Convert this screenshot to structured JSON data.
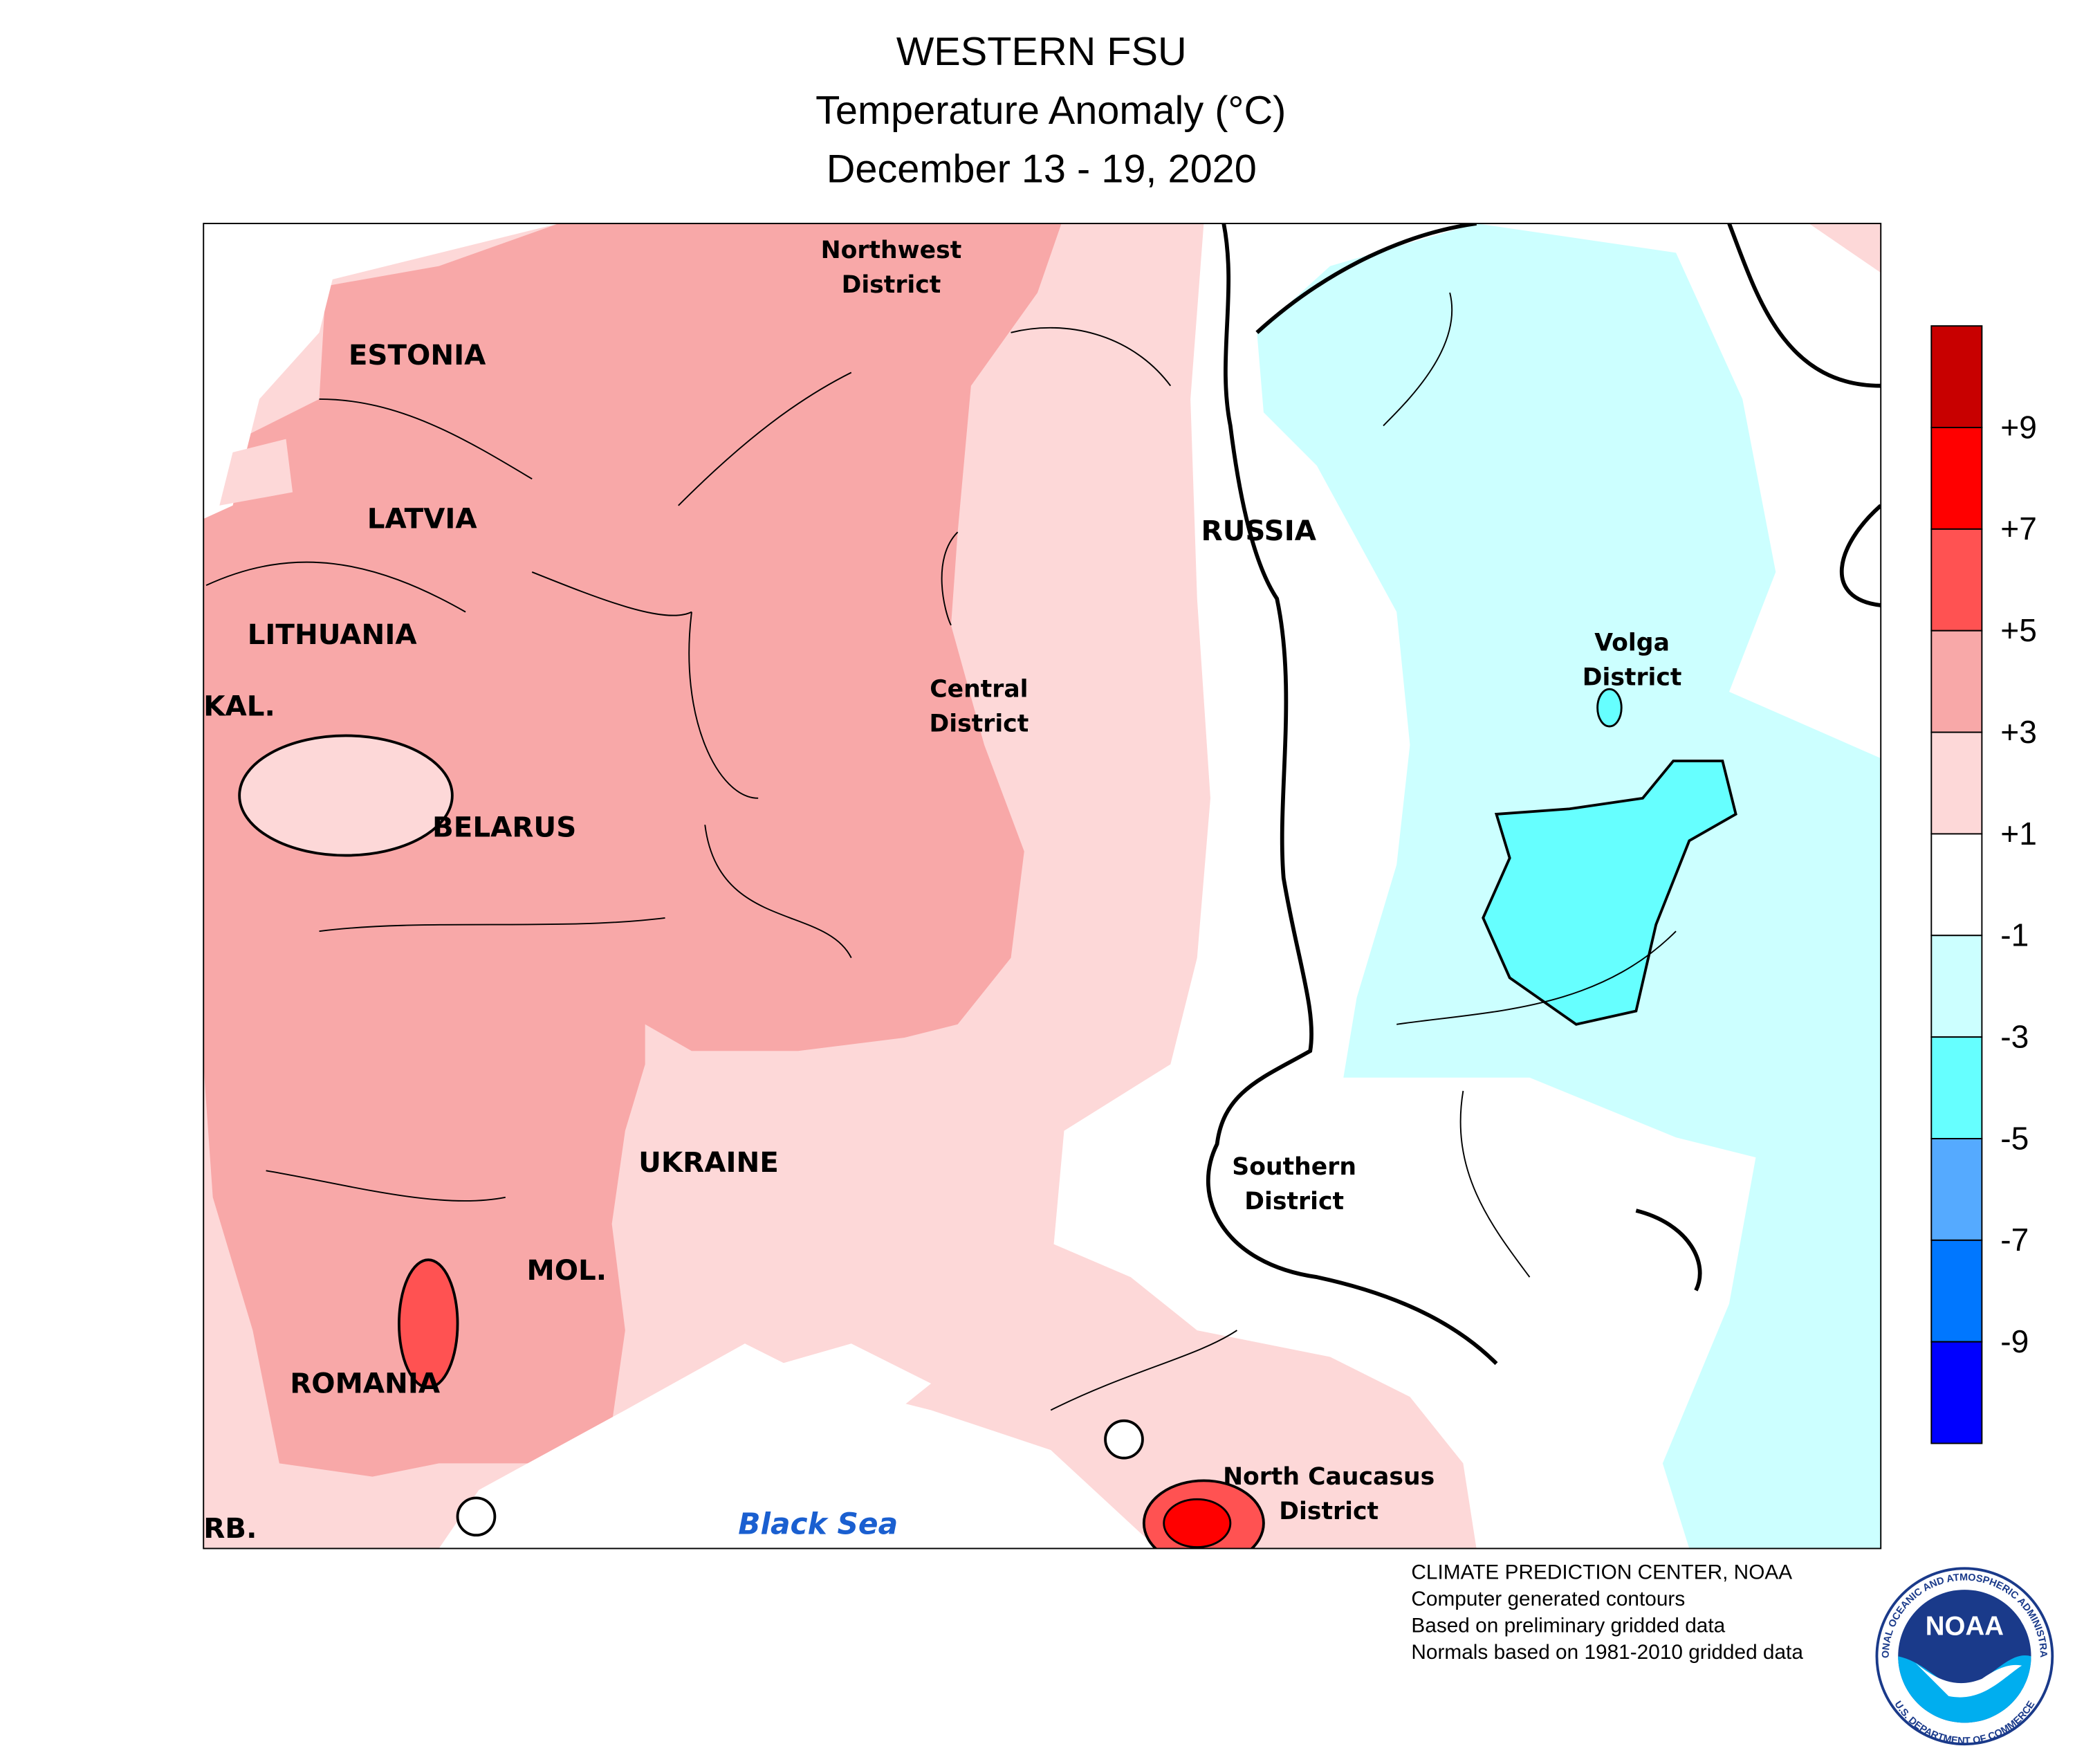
{
  "header": {
    "title": "WESTERN FSU",
    "subtitle": "Temperature Anomaly (°C)",
    "date": "December 13 - 19, 2020"
  },
  "map": {
    "countries": [
      "ESTONIA",
      "LATVIA",
      "LITHUANIA",
      "KAL.",
      "BELARUS",
      "UKRAINE",
      "MOL.",
      "ROMANIA",
      "RB.",
      "RUSSIA"
    ],
    "districts": [
      [
        "Northwest",
        "District"
      ],
      [
        "Central",
        "District"
      ],
      [
        "Volga",
        "District"
      ],
      [
        "Southern",
        "District"
      ],
      [
        "North Caucasus",
        "District"
      ]
    ],
    "sea": "Black Sea"
  },
  "colorbar": {
    "colors": [
      "#c80000",
      "#ff0000",
      "#ff5252",
      "#f8a8a8",
      "#fdd8d8",
      "#ffffff",
      "#ccffff",
      "#66ffff",
      "#55aaff",
      "#0077ff",
      "#0000ff"
    ],
    "ticks": [
      "+9",
      "+7",
      "+5",
      "+3",
      "+1",
      "-1",
      "-3",
      "-5",
      "-7",
      "-9"
    ]
  },
  "footer": [
    "CLIMATE PREDICTION CENTER, NOAA",
    "Computer generated contours",
    "Based on preliminary gridded data",
    "Normals based on 1981-2010 gridded data"
  ],
  "logo": {
    "text": "NOAA",
    "ring_top": "NATIONAL OCEANIC AND ATMOSPHERIC ADMINISTRATION",
    "ring_bottom": "U.S. DEPARTMENT OF COMMERCE"
  }
}
